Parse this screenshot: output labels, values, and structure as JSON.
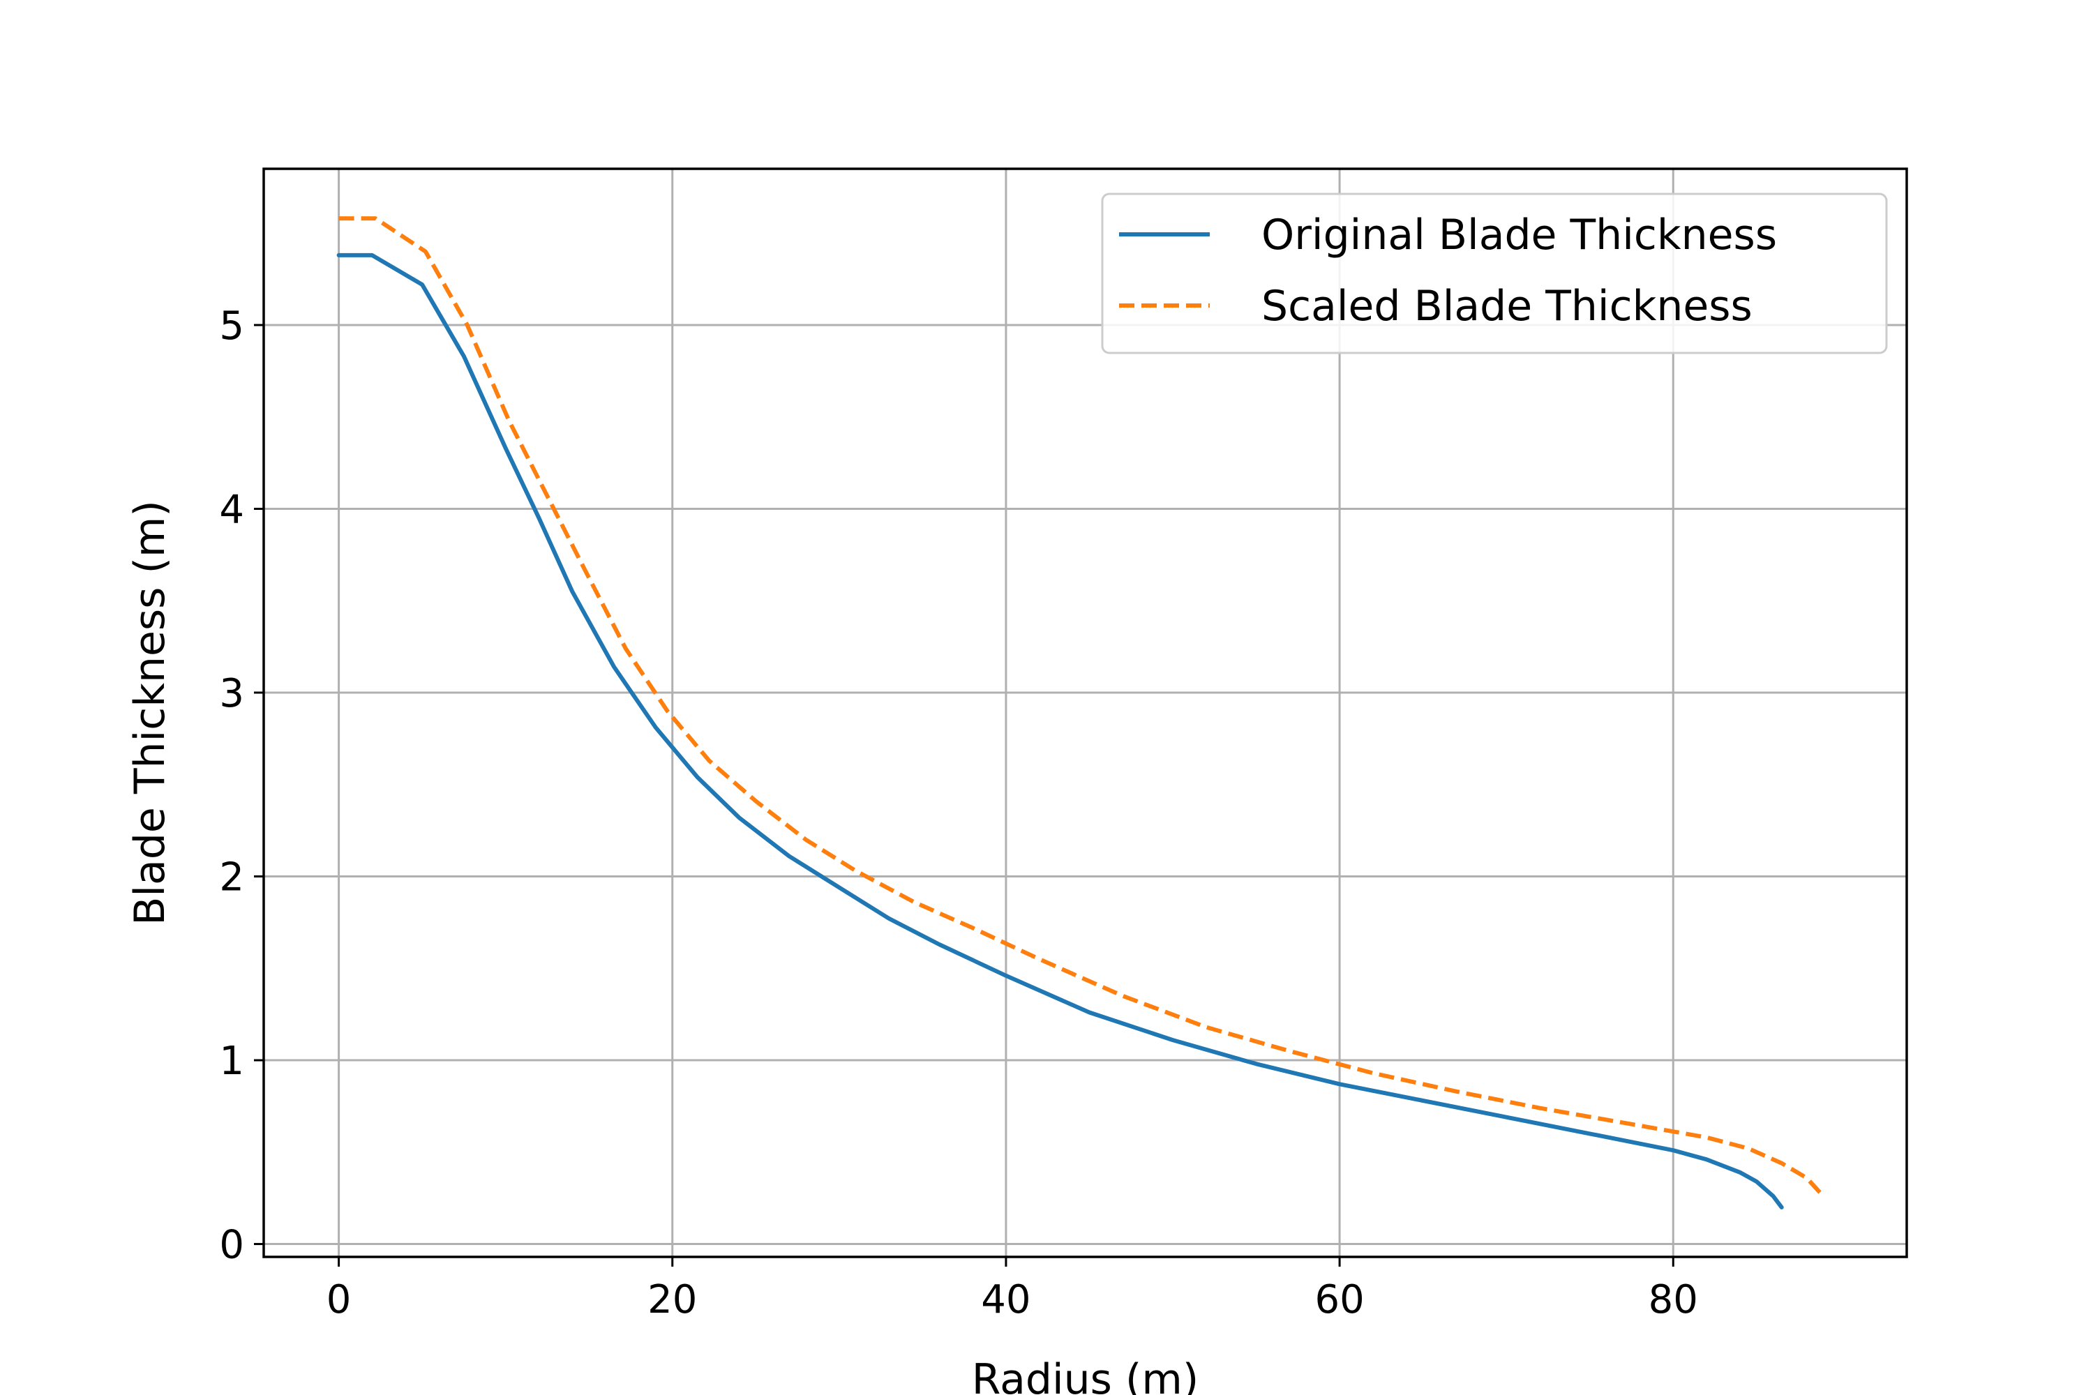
{
  "chart_data": {
    "type": "line",
    "title": "",
    "xlabel": "Radius (m)",
    "ylabel": "Blade Thickness (m)",
    "xlim": [
      -4.5,
      94
    ],
    "ylim": [
      -0.07,
      5.85
    ],
    "xticks": [
      0,
      20,
      40,
      60,
      80
    ],
    "yticks": [
      0,
      1,
      2,
      3,
      4,
      5
    ],
    "grid": true,
    "legend_position": "top-right",
    "series": [
      {
        "name": "Original Blade Thickness",
        "color": "#1f77b4",
        "style": "solid",
        "x": [
          0,
          2,
          5,
          7.5,
          10,
          12,
          14,
          16.5,
          19,
          21.5,
          24,
          27,
          30,
          33,
          36,
          40,
          45,
          50,
          55,
          60,
          65,
          70,
          75,
          80,
          82,
          84,
          85,
          86,
          86.5
        ],
        "y": [
          5.38,
          5.38,
          5.22,
          4.83,
          4.33,
          3.95,
          3.55,
          3.14,
          2.81,
          2.54,
          2.32,
          2.11,
          1.94,
          1.77,
          1.63,
          1.46,
          1.26,
          1.11,
          0.98,
          0.87,
          0.78,
          0.69,
          0.6,
          0.51,
          0.46,
          0.39,
          0.34,
          0.26,
          0.2
        ]
      },
      {
        "name": "Scaled Blade Thickness",
        "color": "#ff7f0e",
        "style": "dashed",
        "x": [
          0,
          2.2,
          5.2,
          7.7,
          10.2,
          12.5,
          14.8,
          17.2,
          19.7,
          22.2,
          25,
          28,
          31,
          34.5,
          38,
          42,
          47,
          52,
          57,
          62,
          67,
          72,
          77,
          82,
          84.5,
          86.5,
          88,
          89
        ],
        "y": [
          5.58,
          5.58,
          5.4,
          5.0,
          4.48,
          4.07,
          3.66,
          3.24,
          2.9,
          2.63,
          2.41,
          2.2,
          2.03,
          1.86,
          1.72,
          1.55,
          1.35,
          1.18,
          1.05,
          0.93,
          0.83,
          0.74,
          0.66,
          0.58,
          0.52,
          0.44,
          0.36,
          0.26
        ]
      }
    ]
  }
}
